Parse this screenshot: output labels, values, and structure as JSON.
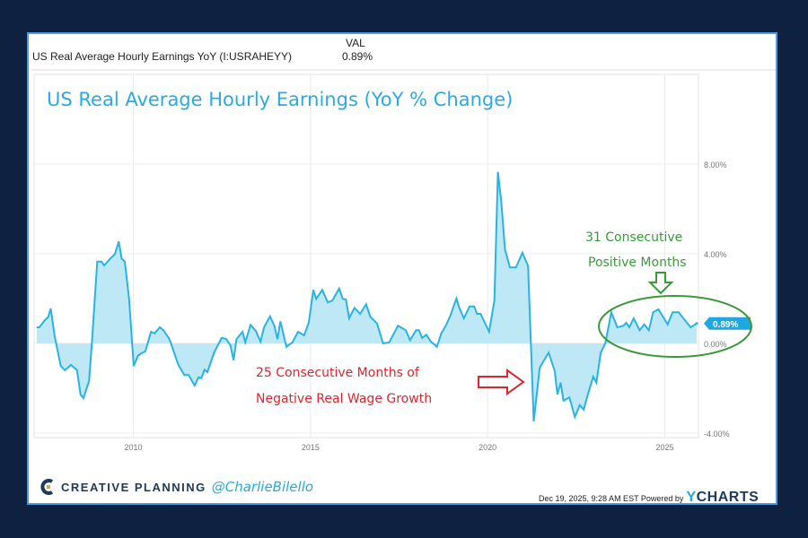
{
  "header": {
    "column": "VAL",
    "series_label": "US Real Average Hourly Earnings YoY (I:USRAHEYY)",
    "value": "0.89%"
  },
  "chart_data": {
    "type": "area",
    "title": "US Real Average Hourly Earnings (YoY % Change)",
    "xlabel": "",
    "ylabel": "",
    "xlim": [
      2007.2,
      2025.95
    ],
    "ylim": [
      -4.2,
      9.6
    ],
    "x_ticks": [
      2010,
      2015,
      2020,
      2025
    ],
    "x_tick_labels": [
      "2010",
      "2015",
      "2020",
      "2025"
    ],
    "y_ticks": [
      8,
      4,
      0,
      -4
    ],
    "y_tick_labels": [
      "8.00%",
      "4.00%",
      "0.00%",
      "-4.00%"
    ],
    "grid": true,
    "colors": {
      "line": "#29b3e3",
      "fill": "#bfe8f6",
      "annotation_red": "#d8262c",
      "annotation_green": "#3a9a3a"
    },
    "last_value_badge": "0.89%",
    "points": [
      [
        2007.27,
        0.72
      ],
      [
        2007.35,
        0.72
      ],
      [
        2007.48,
        1.0
      ],
      [
        2007.6,
        1.19
      ],
      [
        2007.67,
        1.56
      ],
      [
        2007.78,
        0.32
      ],
      [
        2007.95,
        -1.0
      ],
      [
        2008.07,
        -1.2
      ],
      [
        2008.24,
        -0.96
      ],
      [
        2008.41,
        -1.19
      ],
      [
        2008.51,
        -2.28
      ],
      [
        2008.59,
        -2.44
      ],
      [
        2008.75,
        -1.68
      ],
      [
        2008.83,
        0.0
      ],
      [
        2008.98,
        3.65
      ],
      [
        2009.1,
        3.65
      ],
      [
        2009.18,
        3.48
      ],
      [
        2009.35,
        3.79
      ],
      [
        2009.48,
        3.99
      ],
      [
        2009.59,
        4.55
      ],
      [
        2009.67,
        3.79
      ],
      [
        2009.76,
        3.65
      ],
      [
        2009.88,
        1.99
      ],
      [
        2010.01,
        -1.01
      ],
      [
        2010.13,
        -0.55
      ],
      [
        2010.22,
        -0.45
      ],
      [
        2010.34,
        -0.35
      ],
      [
        2010.5,
        0.52
      ],
      [
        2010.6,
        0.45
      ],
      [
        2010.75,
        0.72
      ],
      [
        2010.85,
        0.59
      ],
      [
        2011.02,
        0.19
      ],
      [
        2011.27,
        -0.95
      ],
      [
        2011.44,
        -1.41
      ],
      [
        2011.56,
        -1.41
      ],
      [
        2011.73,
        -1.88
      ],
      [
        2011.84,
        -1.51
      ],
      [
        2011.92,
        -1.55
      ],
      [
        2012.01,
        -1.17
      ],
      [
        2012.09,
        -1.28
      ],
      [
        2012.28,
        -0.41
      ],
      [
        2012.49,
        0.25
      ],
      [
        2012.62,
        0.2
      ],
      [
        2012.74,
        -0.08
      ],
      [
        2012.83,
        -0.75
      ],
      [
        2012.91,
        0.19
      ],
      [
        2013.08,
        0.52
      ],
      [
        2013.16,
        0.05
      ],
      [
        2013.31,
        0.83
      ],
      [
        2013.46,
        0.55
      ],
      [
        2013.59,
        0.08
      ],
      [
        2013.69,
        0.72
      ],
      [
        2013.86,
        1.21
      ],
      [
        2013.98,
        0.79
      ],
      [
        2014.07,
        0.19
      ],
      [
        2014.15,
        0.99
      ],
      [
        2014.32,
        -0.15
      ],
      [
        2014.49,
        0.05
      ],
      [
        2014.65,
        0.52
      ],
      [
        2014.82,
        0.36
      ],
      [
        2014.95,
        0.92
      ],
      [
        2015.08,
        2.39
      ],
      [
        2015.16,
        1.99
      ],
      [
        2015.33,
        2.39
      ],
      [
        2015.49,
        1.83
      ],
      [
        2015.62,
        1.92
      ],
      [
        2015.81,
        2.45
      ],
      [
        2015.91,
        1.99
      ],
      [
        2016.0,
        1.96
      ],
      [
        2016.09,
        1.12
      ],
      [
        2016.24,
        1.59
      ],
      [
        2016.4,
        1.32
      ],
      [
        2016.57,
        1.75
      ],
      [
        2016.69,
        1.19
      ],
      [
        2016.88,
        0.89
      ],
      [
        2017.05,
        0.0
      ],
      [
        2017.22,
        0.05
      ],
      [
        2017.47,
        0.79
      ],
      [
        2017.69,
        0.59
      ],
      [
        2017.81,
        0.15
      ],
      [
        2017.98,
        0.59
      ],
      [
        2018.06,
        0.59
      ],
      [
        2018.15,
        0.25
      ],
      [
        2018.27,
        0.39
      ],
      [
        2018.4,
        0.08
      ],
      [
        2018.57,
        -0.15
      ],
      [
        2018.69,
        0.45
      ],
      [
        2018.82,
        0.79
      ],
      [
        2018.95,
        1.25
      ],
      [
        2019.12,
        2.01
      ],
      [
        2019.2,
        1.59
      ],
      [
        2019.33,
        1.12
      ],
      [
        2019.49,
        1.65
      ],
      [
        2019.62,
        1.65
      ],
      [
        2019.7,
        1.32
      ],
      [
        2019.8,
        1.32
      ],
      [
        2020.04,
        0.52
      ],
      [
        2020.19,
        1.92
      ],
      [
        2020.29,
        7.65
      ],
      [
        2020.38,
        6.39
      ],
      [
        2020.49,
        4.19
      ],
      [
        2020.63,
        3.39
      ],
      [
        2020.8,
        3.39
      ],
      [
        2020.98,
        4.05
      ],
      [
        2021.14,
        3.45
      ],
      [
        2021.3,
        -3.48
      ],
      [
        2021.47,
        -1.08
      ],
      [
        2021.72,
        -0.41
      ],
      [
        2021.89,
        -1.21
      ],
      [
        2021.97,
        -2.28
      ],
      [
        2022.06,
        -1.75
      ],
      [
        2022.14,
        -2.55
      ],
      [
        2022.31,
        -2.41
      ],
      [
        2022.46,
        -3.28
      ],
      [
        2022.6,
        -2.75
      ],
      [
        2022.71,
        -2.95
      ],
      [
        2022.85,
        -2.15
      ],
      [
        2022.98,
        -1.48
      ],
      [
        2023.07,
        -1.75
      ],
      [
        2023.19,
        -0.41
      ],
      [
        2023.32,
        0.0
      ],
      [
        2023.49,
        1.39
      ],
      [
        2023.66,
        0.72
      ],
      [
        2023.83,
        0.79
      ],
      [
        2023.91,
        0.92
      ],
      [
        2024.0,
        0.72
      ],
      [
        2024.12,
        1.12
      ],
      [
        2024.29,
        0.59
      ],
      [
        2024.42,
        0.85
      ],
      [
        2024.55,
        0.59
      ],
      [
        2024.67,
        1.39
      ],
      [
        2024.82,
        1.52
      ],
      [
        2025.08,
        0.85
      ],
      [
        2025.22,
        1.39
      ],
      [
        2025.39,
        1.39
      ],
      [
        2025.56,
        1.05
      ],
      [
        2025.73,
        0.72
      ],
      [
        2025.9,
        0.89
      ]
    ],
    "annotations": [
      {
        "lines": [
          "25 Consecutive Months of",
          "Negative Real Wage Growth"
        ],
        "color": "red",
        "marker": "right-arrow"
      },
      {
        "lines": [
          "31 Consecutive",
          "Positive Months"
        ],
        "color": "green",
        "marker": "down-arrow, ellipse around 2023.5-2025.9"
      }
    ]
  },
  "footer": {
    "brand": "CREATIVE PLANNING",
    "handle": "@CharlieBilello",
    "timestamp": "Dec 19, 2025, 9:28 AM EST Powered by",
    "logo_y": "Y",
    "logo_rest": "CHARTS"
  }
}
